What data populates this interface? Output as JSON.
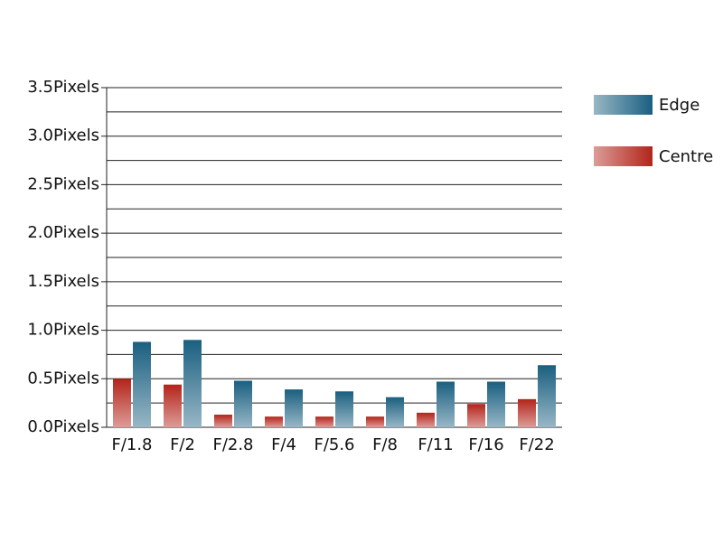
{
  "chart_data": {
    "type": "bar",
    "categories": [
      "F/1.8",
      "F/2",
      "F/2.8",
      "F/4",
      "F/5.6",
      "F/8",
      "F/11",
      "F/16",
      "F/22"
    ],
    "series": [
      {
        "name": "Edge",
        "color": "#1a5f80",
        "values": [
          0.88,
          0.9,
          0.48,
          0.39,
          0.37,
          0.31,
          0.47,
          0.47,
          0.64
        ]
      },
      {
        "name": "Centre",
        "color": "#b3241a",
        "values": [
          0.5,
          0.44,
          0.13,
          0.11,
          0.11,
          0.11,
          0.15,
          0.24,
          0.29
        ]
      }
    ],
    "ylim": [
      0,
      3.5
    ],
    "yticks": [
      {
        "value": 0,
        "label": "0.0Pixels"
      },
      {
        "value": 0.5,
        "label": "0.5Pixels"
      },
      {
        "value": 1,
        "label": "1.0Pixels"
      },
      {
        "value": 1.5,
        "label": "1.5Pixels"
      },
      {
        "value": 2,
        "label": "2.0Pixels"
      },
      {
        "value": 2.5,
        "label": "2.5Pixels"
      },
      {
        "value": 3,
        "label": "3.0Pixels"
      },
      {
        "value": 3.5,
        "label": "3.5Pixels"
      }
    ],
    "minor_yticks": [
      0.25,
      0.75,
      1.25,
      1.75,
      2.25,
      2.75,
      3.25
    ],
    "grid": true,
    "legend": "right"
  }
}
